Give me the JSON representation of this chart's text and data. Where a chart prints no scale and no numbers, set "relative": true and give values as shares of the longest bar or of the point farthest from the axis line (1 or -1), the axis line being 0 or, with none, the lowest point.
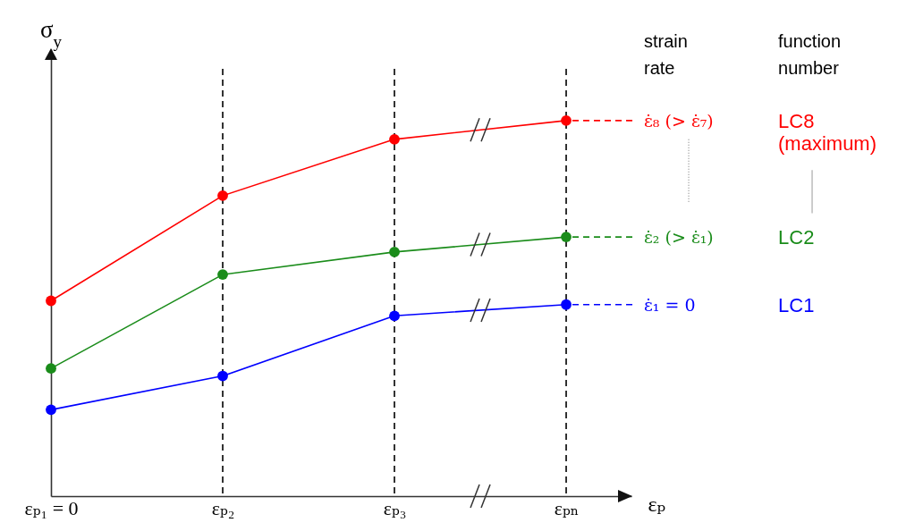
{
  "chart_data": {
    "type": "line",
    "relative": true,
    "ylabel": "σ$_{y}$",
    "xlabel": "εₚ",
    "categories": [
      "εₚ₁ = 0",
      "εₚ₂",
      "εₚ₃",
      "εₚₙ"
    ],
    "series": [
      {
        "name": "ε̇₈ (> ε̇₇)",
        "color": "#ff0000",
        "values": [
          0.52,
          0.8,
          0.95,
          1
        ]
      },
      {
        "name": "ε̇₂ (> ε̇₁)",
        "color": "#1a8c1a",
        "values": [
          0.34,
          0.59,
          0.65,
          0.69
        ]
      },
      {
        "name": "ε̇₁ = 0",
        "color": "#0000ff",
        "values": [
          0.23,
          0.32,
          0.48,
          0.51
        ]
      }
    ],
    "legend": "right",
    "legend_title": "strain rate",
    "annotations": [
      "function number",
      "LC8 (maximum)",
      "LC2",
      "LC1"
    ],
    "ref_lines": [
      {
        "axis": "x",
        "value": "εₚ₂",
        "color": "#000000",
        "line_style": "dashed"
      },
      {
        "axis": "x",
        "value": "εₚ₃",
        "color": "#000000",
        "line_style": "dashed"
      },
      {
        "axis": "x",
        "value": "εₚₙ",
        "color": "#000000",
        "line_style": "dashed"
      }
    ],
    "marker": "circle",
    "line_style": "solid",
    "tick_labels": "x"
  }
}
